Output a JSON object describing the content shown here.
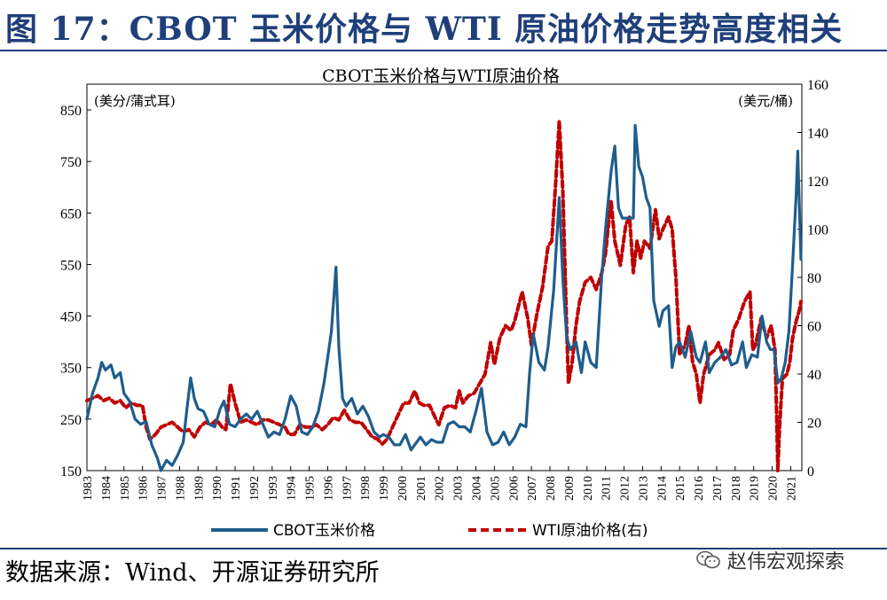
{
  "figure": {
    "title": "图 17：CBOT 玉米价格与 WTI 原油价格走势高度相关",
    "source": "数据来源：Wind、开源证券研究所",
    "watermark": "赵伟宏观探索"
  },
  "colors": {
    "corn": "#1f5d8c",
    "oil": "#c00000",
    "title": "#1f3f7a"
  },
  "chart_data": {
    "type": "line",
    "title": "CBOT玉米价格与WTI原油价格",
    "left_unit": "(美分/蒲式耳)",
    "right_unit": "(美元/桶)",
    "left_ylim": [
      150,
      900
    ],
    "right_ylim": [
      0,
      160
    ],
    "left_ticks": [
      150,
      250,
      350,
      450,
      550,
      650,
      750,
      850
    ],
    "right_ticks": [
      0,
      20,
      40,
      60,
      80,
      100,
      120,
      140,
      160
    ],
    "x_range": [
      1983,
      2021.6
    ],
    "x_ticks": [
      "1983",
      "1984",
      "1985",
      "1986",
      "1987",
      "1988",
      "1989",
      "1990",
      "1991",
      "1992",
      "1993",
      "1994",
      "1995",
      "1996",
      "1997",
      "1998",
      "1999",
      "2000",
      "2001",
      "2002",
      "2003",
      "2004",
      "2005",
      "2006",
      "2007",
      "2008",
      "2009",
      "2010",
      "2011",
      "2012",
      "2013",
      "2014",
      "2015",
      "2016",
      "2017",
      "2018",
      "2019",
      "2020",
      "2021"
    ],
    "series": [
      {
        "name": "CBOT玉米价格",
        "axis": "left",
        "style": "solid",
        "points": [
          [
            1983.0,
            250
          ],
          [
            1983.3,
            300
          ],
          [
            1983.6,
            330
          ],
          [
            1983.8,
            360
          ],
          [
            1984.0,
            345
          ],
          [
            1984.3,
            355
          ],
          [
            1984.5,
            330
          ],
          [
            1984.8,
            340
          ],
          [
            1985.0,
            300
          ],
          [
            1985.3,
            285
          ],
          [
            1985.6,
            250
          ],
          [
            1985.9,
            240
          ],
          [
            1986.2,
            245
          ],
          [
            1986.5,
            200
          ],
          [
            1986.8,
            175
          ],
          [
            1987.0,
            150
          ],
          [
            1987.3,
            170
          ],
          [
            1987.6,
            160
          ],
          [
            1987.9,
            180
          ],
          [
            1988.2,
            205
          ],
          [
            1988.4,
            270
          ],
          [
            1988.6,
            330
          ],
          [
            1988.8,
            290
          ],
          [
            1989.0,
            270
          ],
          [
            1989.3,
            265
          ],
          [
            1989.6,
            240
          ],
          [
            1989.9,
            235
          ],
          [
            1990.2,
            270
          ],
          [
            1990.4,
            285
          ],
          [
            1990.7,
            240
          ],
          [
            1991.0,
            235
          ],
          [
            1991.3,
            250
          ],
          [
            1991.6,
            260
          ],
          [
            1991.9,
            250
          ],
          [
            1992.2,
            265
          ],
          [
            1992.5,
            240
          ],
          [
            1992.8,
            215
          ],
          [
            1993.1,
            225
          ],
          [
            1993.4,
            220
          ],
          [
            1993.7,
            250
          ],
          [
            1994.0,
            295
          ],
          [
            1994.3,
            275
          ],
          [
            1994.6,
            225
          ],
          [
            1994.9,
            220
          ],
          [
            1995.2,
            235
          ],
          [
            1995.5,
            265
          ],
          [
            1995.8,
            320
          ],
          [
            1996.0,
            370
          ],
          [
            1996.2,
            420
          ],
          [
            1996.45,
            545
          ],
          [
            1996.6,
            390
          ],
          [
            1996.8,
            290
          ],
          [
            1997.0,
            275
          ],
          [
            1997.3,
            290
          ],
          [
            1997.6,
            260
          ],
          [
            1997.9,
            275
          ],
          [
            1998.2,
            255
          ],
          [
            1998.5,
            225
          ],
          [
            1998.8,
            215
          ],
          [
            1999.0,
            220
          ],
          [
            1999.3,
            215
          ],
          [
            1999.6,
            200
          ],
          [
            1999.9,
            200
          ],
          [
            2000.2,
            220
          ],
          [
            2000.5,
            190
          ],
          [
            2000.8,
            205
          ],
          [
            2001.0,
            215
          ],
          [
            2001.3,
            200
          ],
          [
            2001.6,
            210
          ],
          [
            2001.9,
            205
          ],
          [
            2002.2,
            205
          ],
          [
            2002.5,
            240
          ],
          [
            2002.8,
            245
          ],
          [
            2003.1,
            235
          ],
          [
            2003.4,
            235
          ],
          [
            2003.7,
            225
          ],
          [
            2004.0,
            265
          ],
          [
            2004.3,
            310
          ],
          [
            2004.6,
            225
          ],
          [
            2004.9,
            200
          ],
          [
            2005.2,
            205
          ],
          [
            2005.5,
            225
          ],
          [
            2005.8,
            200
          ],
          [
            2006.1,
            215
          ],
          [
            2006.4,
            240
          ],
          [
            2006.7,
            235
          ],
          [
            2006.9,
            340
          ],
          [
            2007.1,
            415
          ],
          [
            2007.4,
            360
          ],
          [
            2007.7,
            345
          ],
          [
            2007.9,
            390
          ],
          [
            2008.2,
            500
          ],
          [
            2008.5,
            680
          ],
          [
            2008.7,
            520
          ],
          [
            2008.9,
            410
          ],
          [
            2009.1,
            385
          ],
          [
            2009.4,
            400
          ],
          [
            2009.7,
            340
          ],
          [
            2009.9,
            400
          ],
          [
            2010.2,
            360
          ],
          [
            2010.5,
            350
          ],
          [
            2010.8,
            530
          ],
          [
            2011.0,
            620
          ],
          [
            2011.3,
            730
          ],
          [
            2011.5,
            780
          ],
          [
            2011.7,
            660
          ],
          [
            2011.9,
            640
          ],
          [
            2012.2,
            640
          ],
          [
            2012.5,
            640
          ],
          [
            2012.6,
            820
          ],
          [
            2012.8,
            740
          ],
          [
            2013.0,
            720
          ],
          [
            2013.2,
            680
          ],
          [
            2013.4,
            660
          ],
          [
            2013.6,
            480
          ],
          [
            2013.9,
            430
          ],
          [
            2014.1,
            460
          ],
          [
            2014.4,
            470
          ],
          [
            2014.6,
            350
          ],
          [
            2014.8,
            390
          ],
          [
            2015.0,
            400
          ],
          [
            2015.3,
            370
          ],
          [
            2015.6,
            420
          ],
          [
            2015.9,
            370
          ],
          [
            2016.1,
            360
          ],
          [
            2016.4,
            400
          ],
          [
            2016.6,
            340
          ],
          [
            2016.9,
            360
          ],
          [
            2017.2,
            370
          ],
          [
            2017.5,
            385
          ],
          [
            2017.8,
            355
          ],
          [
            2018.1,
            360
          ],
          [
            2018.4,
            400
          ],
          [
            2018.6,
            350
          ],
          [
            2018.9,
            375
          ],
          [
            2019.2,
            370
          ],
          [
            2019.45,
            450
          ],
          [
            2019.7,
            400
          ],
          [
            2019.9,
            385
          ],
          [
            2020.1,
            385
          ],
          [
            2020.3,
            320
          ],
          [
            2020.5,
            330
          ],
          [
            2020.7,
            360
          ],
          [
            2020.9,
            420
          ],
          [
            2021.1,
            550
          ],
          [
            2021.3,
            690
          ],
          [
            2021.38,
            770
          ],
          [
            2021.45,
            680
          ],
          [
            2021.55,
            560
          ]
        ]
      },
      {
        "name": "WTI原油价格(右)",
        "axis": "right",
        "style": "dashed",
        "points": [
          [
            1983.0,
            29
          ],
          [
            1983.3,
            30
          ],
          [
            1983.6,
            31
          ],
          [
            1983.9,
            29
          ],
          [
            1984.2,
            30
          ],
          [
            1984.5,
            28
          ],
          [
            1984.8,
            29
          ],
          [
            1985.1,
            26
          ],
          [
            1985.4,
            28
          ],
          [
            1985.7,
            27
          ],
          [
            1986.0,
            27
          ],
          [
            1986.2,
            18
          ],
          [
            1986.4,
            13
          ],
          [
            1986.7,
            15
          ],
          [
            1987.0,
            18
          ],
          [
            1987.3,
            19
          ],
          [
            1987.6,
            20
          ],
          [
            1987.9,
            18
          ],
          [
            1988.2,
            16
          ],
          [
            1988.5,
            17
          ],
          [
            1988.8,
            14
          ],
          [
            1989.1,
            18
          ],
          [
            1989.4,
            20
          ],
          [
            1989.7,
            19
          ],
          [
            1990.0,
            21
          ],
          [
            1990.3,
            18
          ],
          [
            1990.5,
            17
          ],
          [
            1990.75,
            36
          ],
          [
            1991.0,
            28
          ],
          [
            1991.3,
            20
          ],
          [
            1991.6,
            21
          ],
          [
            1991.9,
            20
          ],
          [
            1992.2,
            19
          ],
          [
            1992.5,
            21
          ],
          [
            1992.8,
            21
          ],
          [
            1993.1,
            20
          ],
          [
            1993.4,
            19
          ],
          [
            1993.7,
            18
          ],
          [
            1993.9,
            15
          ],
          [
            1994.2,
            15
          ],
          [
            1994.5,
            19
          ],
          [
            1994.8,
            18
          ],
          [
            1995.1,
            18
          ],
          [
            1995.4,
            19
          ],
          [
            1995.7,
            17
          ],
          [
            1996.0,
            19
          ],
          [
            1996.3,
            22
          ],
          [
            1996.6,
            21
          ],
          [
            1996.9,
            25
          ],
          [
            1997.2,
            21
          ],
          [
            1997.5,
            20
          ],
          [
            1997.8,
            20
          ],
          [
            1998.1,
            17
          ],
          [
            1998.4,
            14
          ],
          [
            1998.7,
            13
          ],
          [
            1998.95,
            11
          ],
          [
            1999.2,
            13
          ],
          [
            1999.5,
            18
          ],
          [
            1999.8,
            23
          ],
          [
            2000.1,
            28
          ],
          [
            2000.4,
            28
          ],
          [
            2000.7,
            33
          ],
          [
            2000.95,
            28
          ],
          [
            2001.2,
            27
          ],
          [
            2001.5,
            27
          ],
          [
            2001.8,
            22
          ],
          [
            2002.0,
            19
          ],
          [
            2002.3,
            26
          ],
          [
            2002.6,
            27
          ],
          [
            2002.9,
            26
          ],
          [
            2003.1,
            33
          ],
          [
            2003.3,
            28
          ],
          [
            2003.6,
            31
          ],
          [
            2003.9,
            32
          ],
          [
            2004.2,
            36
          ],
          [
            2004.5,
            40
          ],
          [
            2004.8,
            53
          ],
          [
            2005.0,
            44
          ],
          [
            2005.3,
            55
          ],
          [
            2005.6,
            60
          ],
          [
            2005.9,
            58
          ],
          [
            2006.1,
            62
          ],
          [
            2006.5,
            74
          ],
          [
            2006.8,
            63
          ],
          [
            2007.0,
            52
          ],
          [
            2007.3,
            65
          ],
          [
            2007.6,
            76
          ],
          [
            2007.9,
            93
          ],
          [
            2008.1,
            95
          ],
          [
            2008.3,
            118
          ],
          [
            2008.5,
            145
          ],
          [
            2008.7,
            115
          ],
          [
            2008.9,
            60
          ],
          [
            2009.0,
            36
          ],
          [
            2009.2,
            45
          ],
          [
            2009.4,
            60
          ],
          [
            2009.6,
            70
          ],
          [
            2009.9,
            78
          ],
          [
            2010.2,
            80
          ],
          [
            2010.5,
            75
          ],
          [
            2010.8,
            82
          ],
          [
            2011.0,
            90
          ],
          [
            2011.3,
            112
          ],
          [
            2011.5,
            95
          ],
          [
            2011.8,
            85
          ],
          [
            2012.1,
            102
          ],
          [
            2012.3,
            105
          ],
          [
            2012.5,
            82
          ],
          [
            2012.7,
            95
          ],
          [
            2012.9,
            88
          ],
          [
            2013.1,
            95
          ],
          [
            2013.4,
            92
          ],
          [
            2013.7,
            108
          ],
          [
            2013.9,
            96
          ],
          [
            2014.1,
            100
          ],
          [
            2014.4,
            105
          ],
          [
            2014.6,
            100
          ],
          [
            2014.8,
            80
          ],
          [
            2015.0,
            48
          ],
          [
            2015.3,
            52
          ],
          [
            2015.5,
            60
          ],
          [
            2015.7,
            45
          ],
          [
            2015.9,
            40
          ],
          [
            2016.1,
            28
          ],
          [
            2016.3,
            40
          ],
          [
            2016.6,
            48
          ],
          [
            2016.9,
            50
          ],
          [
            2017.1,
            53
          ],
          [
            2017.4,
            46
          ],
          [
            2017.7,
            48
          ],
          [
            2017.9,
            58
          ],
          [
            2018.2,
            63
          ],
          [
            2018.5,
            70
          ],
          [
            2018.8,
            74
          ],
          [
            2018.95,
            50
          ],
          [
            2019.1,
            52
          ],
          [
            2019.4,
            63
          ],
          [
            2019.7,
            55
          ],
          [
            2019.95,
            60
          ],
          [
            2020.15,
            50
          ],
          [
            2020.25,
            20
          ],
          [
            2020.3,
            0
          ],
          [
            2020.4,
            18
          ],
          [
            2020.55,
            38
          ],
          [
            2020.8,
            40
          ],
          [
            2020.95,
            45
          ],
          [
            2021.1,
            55
          ],
          [
            2021.3,
            62
          ],
          [
            2021.45,
            66
          ],
          [
            2021.55,
            70
          ]
        ]
      }
    ],
    "legend": [
      "CBOT玉米价格",
      "WTI原油价格(右)"
    ],
    "legend_position": "bottom"
  }
}
